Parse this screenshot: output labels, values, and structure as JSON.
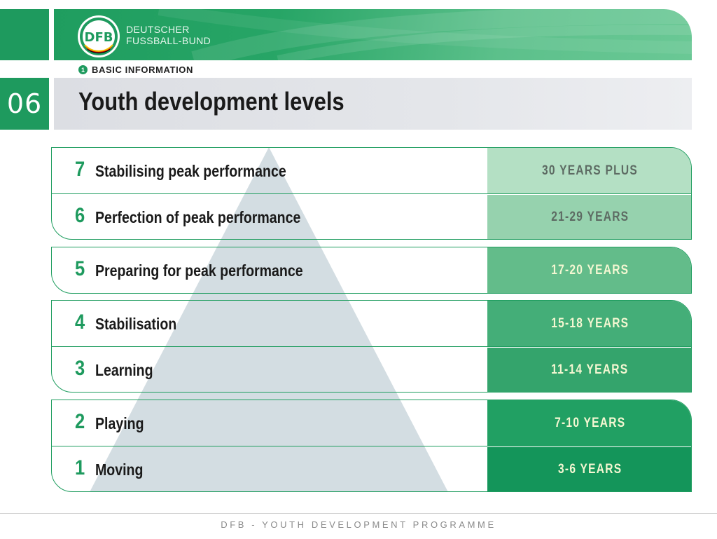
{
  "header": {
    "brand_line1": "DEUTSCHER",
    "brand_line2": "FUSSBALL-BUND",
    "logo_text": "DFB",
    "accent_color": "#1e9a5e"
  },
  "section": {
    "number": "1",
    "label": "BASIC INFORMATION"
  },
  "page": {
    "number": "06",
    "title": "Youth development levels"
  },
  "levels": [
    {
      "num": "7",
      "label": "Stabilising peak performance",
      "age": "30 YEARS PLUS",
      "color": "#b4e0c4",
      "text_color": "#5d6b63"
    },
    {
      "num": "6",
      "label": "Perfection of peak performance",
      "age": "21-29 YEARS",
      "color": "#96d2ae",
      "text_color": "#5d6b63"
    },
    {
      "num": "5",
      "label": "Preparing for peak performance",
      "age": "17-20 YEARS",
      "color": "#63bc8a",
      "text_color": "#f4f7d2"
    },
    {
      "num": "4",
      "label": "Stabilisation",
      "age": "15-18 YEARS",
      "color": "#44ae78",
      "text_color": "#f4f7d2"
    },
    {
      "num": "3",
      "label": "Learning",
      "age": "11-14 YEARS",
      "color": "#34a46c",
      "text_color": "#f4f7d2"
    },
    {
      "num": "2",
      "label": "Playing",
      "age": "7-10 YEARS",
      "color": "#21a063",
      "text_color": "#f4f7d2"
    },
    {
      "num": "1",
      "label": "Moving",
      "age": "3-6 YEARS",
      "color": "#14955a",
      "text_color": "#f4f7d2"
    }
  ],
  "footer": {
    "text": "DFB - YOUTH DEVELOPMENT PROGRAMME"
  }
}
